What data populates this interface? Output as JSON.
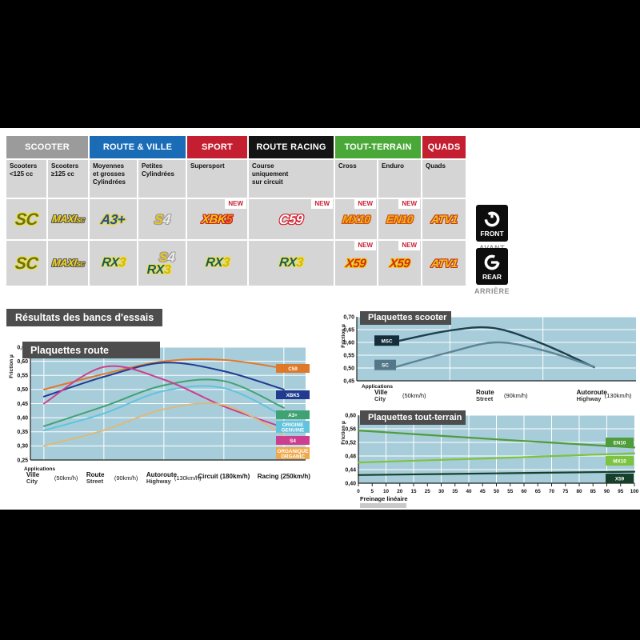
{
  "colors": {
    "page_bg": "#000000",
    "content_bg": "#ffffff",
    "cell_bg": "#d5d5d5",
    "title_bar_bg": "#4d4d4d",
    "plot_bg": "#a7cdda",
    "new_color": "#c81f33"
  },
  "table": {
    "new_label": "NEW",
    "categories": [
      {
        "label": "SCOOTER",
        "color": "#9b9b9b",
        "cols": [
          0,
          1
        ]
      },
      {
        "label": "ROUTE & VILLE",
        "color": "#1a6cb7",
        "cols": [
          2,
          3
        ]
      },
      {
        "label": "SPORT",
        "color": "#c41f30",
        "cols": [
          4
        ]
      },
      {
        "label": "ROUTE RACING",
        "color": "#141414",
        "cols": [
          5
        ]
      },
      {
        "label": "TOUT-TERRAIN",
        "color": "#4aa838",
        "cols": [
          6,
          7
        ]
      },
      {
        "label": "QUADS",
        "color": "#c41f30",
        "cols": [
          8
        ]
      }
    ],
    "subheaders": [
      [
        "Scooters",
        "<125 cc"
      ],
      [
        "Scooters",
        "≥125 cc"
      ],
      [
        "Moyennes",
        "et grosses",
        "Cylindrées"
      ],
      [
        "Petites",
        "Cylindrées"
      ],
      [
        "Supersport"
      ],
      [
        "Course",
        "uniquement",
        "sur circuit"
      ],
      [
        "Cross"
      ],
      [
        "Enduro"
      ],
      [
        "Quads"
      ]
    ],
    "front_row": {
      "side": "FRONT",
      "side_fr": "AVANT",
      "cells": [
        {
          "logos": [
            "SC"
          ]
        },
        {
          "logos": [
            "MAXISC"
          ]
        },
        {
          "logos": [
            "A3PLUS"
          ]
        },
        {
          "logos": [
            "S4"
          ]
        },
        {
          "logos": [
            "XBK5"
          ],
          "new": true
        },
        {
          "logos": [
            "C59"
          ],
          "new": true
        },
        {
          "logos": [
            "MX10"
          ],
          "new": true
        },
        {
          "logos": [
            "EN10"
          ],
          "new": true
        },
        {
          "logos": [
            "ATV1"
          ]
        }
      ]
    },
    "rear_row": {
      "side": "REAR",
      "side_fr": "ARRIÈRE",
      "cells": [
        {
          "logos": [
            "SC"
          ]
        },
        {
          "logos": [
            "MAXISC"
          ]
        },
        {
          "logos": [
            "RX3"
          ]
        },
        {
          "logos": [
            "S4",
            "RX3"
          ]
        },
        {
          "logos": [
            "RX3"
          ]
        },
        {
          "logos": [
            "RX3"
          ]
        },
        {
          "logos": [
            "X59"
          ],
          "new": true
        },
        {
          "logos": [
            "X59"
          ],
          "new": true
        },
        {
          "logos": [
            "ATV1"
          ]
        }
      ]
    },
    "logos": {
      "SC": {
        "size": 21,
        "outline": "#e9e23b",
        "segments": [
          {
            "text": "SC",
            "color": "#6f6f1a"
          }
        ]
      },
      "MAXISC": {
        "size": 13,
        "outline": "#5a5a5a",
        "segments": [
          {
            "text": "MAXI",
            "color": "#f2d41c"
          },
          {
            "text": "SC",
            "color": "#f2d41c",
            "small": true
          }
        ]
      },
      "A3PLUS": {
        "size": 17,
        "outline": "#e9d41c",
        "segments": [
          {
            "text": "A3+",
            "color": "#1d4fa8"
          }
        ]
      },
      "S4": {
        "size": 17,
        "outline": "#9b9b9b",
        "segments": [
          {
            "text": "S",
            "color": "#f0c613"
          },
          {
            "text": "4",
            "color": "#ececec"
          }
        ]
      },
      "XBK5": {
        "size": 15,
        "outline": "#c62020",
        "segments": [
          {
            "text": "XBK",
            "color": "#f0c613"
          },
          {
            "text": "5",
            "color": "#f07c13"
          }
        ]
      },
      "C59": {
        "size": 17,
        "outline": "#d41f2f",
        "segments": [
          {
            "text": "C59",
            "color": "#ffffff"
          }
        ]
      },
      "MX10": {
        "size": 14,
        "outline": "#d14a12",
        "segments": [
          {
            "text": "MX10",
            "color": "#f0b013"
          }
        ]
      },
      "EN10": {
        "size": 14,
        "outline": "#d14a12",
        "segments": [
          {
            "text": "EN10",
            "color": "#f0b013"
          }
        ]
      },
      "ATV1": {
        "size": 14,
        "outline": "#c63118",
        "segments": [
          {
            "text": "ATV1",
            "color": "#f0c613"
          }
        ]
      },
      "RX3": {
        "size": 16,
        "outline": "#e9e04a",
        "segments": [
          {
            "text": "RX",
            "color": "#175a62"
          },
          {
            "text": "3",
            "color": "#d8b400"
          }
        ]
      },
      "X59": {
        "size": 15,
        "outline": "#f0c613",
        "segments": [
          {
            "text": "X59",
            "color": "#d42a13"
          }
        ]
      }
    }
  },
  "results_title": "Résultats des bancs d'essais",
  "chart_data": [
    {
      "id": "route",
      "type": "line",
      "title": "Plaquettes route",
      "ylabel": "Friction µ",
      "ylim": [
        0.25,
        0.65
      ],
      "grid": true,
      "legend_position": "right-inside",
      "yticks": [
        "0,65",
        "0,60",
        "0,55",
        "0,50",
        "0,45",
        "0,40",
        "0,35",
        "0,30",
        "0,25"
      ],
      "applications_label": "Applications",
      "categories": [
        {
          "fr": "Ville",
          "en": "City",
          "speed": "(50km/h)"
        },
        {
          "fr": "Route",
          "en": "Street",
          "speed": "(90km/h)"
        },
        {
          "fr": "Autoroute",
          "en": "Highway",
          "speed": "(130km/h)"
        },
        {
          "fr": "Circuit (180km/h)"
        },
        {
          "fr": "Racing (250km/h)"
        }
      ],
      "series": [
        {
          "name": "C59",
          "color": "#e0782a",
          "label": [
            "C59"
          ],
          "label_bg": "#e0782a",
          "values": [
            0.5,
            0.555,
            0.6,
            0.605,
            0.575
          ]
        },
        {
          "name": "XBK5",
          "color": "#203a90",
          "label": [
            "XBK5"
          ],
          "label_bg": "#203a90",
          "values": [
            0.475,
            0.545,
            0.595,
            0.565,
            0.5
          ]
        },
        {
          "name": "A3+",
          "color": "#3fa273",
          "label": [
            "A3+"
          ],
          "label_bg": "#3fa273",
          "values": [
            0.37,
            0.44,
            0.515,
            0.53,
            0.435
          ]
        },
        {
          "name": "ORIGINE",
          "color": "#62c3dd",
          "label": [
            "ORIGINE",
            "GENUINE"
          ],
          "label_bg": "#62c3dd",
          "values": [
            0.355,
            0.415,
            0.495,
            0.505,
            0.405
          ]
        },
        {
          "name": "S4",
          "color": "#cc3f8e",
          "label": [
            "S4"
          ],
          "label_bg": "#cc3f8e",
          "values": [
            0.45,
            0.58,
            0.535,
            0.44,
            0.365
          ]
        },
        {
          "name": "ORGANIQUE",
          "color": "#dcb97e",
          "label": [
            "ORGANIQUE",
            "ORGANIC"
          ],
          "label_bg": "#efa94a",
          "values": [
            0.3,
            0.355,
            0.43,
            0.445,
            0.34
          ]
        }
      ]
    },
    {
      "id": "scooter",
      "type": "line",
      "title": "Plaquettes scooter",
      "ylabel": "Friction µ",
      "ylim": [
        0.45,
        0.7
      ],
      "grid": true,
      "legend_position": "left-inside",
      "yticks": [
        "0,70",
        "0,65",
        "0,60",
        "0,55",
        "0,50",
        "0,45"
      ],
      "applications_label": "Applications",
      "categories": [
        {
          "fr": "Ville",
          "en": "City",
          "speed": "(50km/h)"
        },
        {
          "fr": "Route",
          "en": "Street",
          "speed": "(90km/h)"
        },
        {
          "fr": "Autoroute",
          "en": "Highway",
          "speed": "(130km/h)"
        }
      ],
      "series": [
        {
          "name": "MSC",
          "color": "#1d3f4e",
          "label": [
            "MSC"
          ],
          "label_bg": "#142e3b",
          "label_v": 0.607,
          "points": [
            [
              0.126,
              0.6
            ],
            [
              0.33,
              0.646
            ],
            [
              0.49,
              0.656
            ],
            [
              0.66,
              0.597
            ],
            [
              0.85,
              0.503
            ]
          ]
        },
        {
          "name": "SC",
          "color": "#5d8496",
          "label": [
            "SC"
          ],
          "label_bg": "#54788a",
          "label_v": 0.512,
          "points": [
            [
              0.126,
              0.5
            ],
            [
              0.33,
              0.561
            ],
            [
              0.5,
              0.6
            ],
            [
              0.67,
              0.568
            ],
            [
              0.85,
              0.505
            ]
          ]
        }
      ]
    },
    {
      "id": "terrain",
      "type": "line",
      "title": "Plaquettes tout-terrain",
      "ylabel": "Friction µ",
      "xlabel": "Freinage linéaire",
      "ylim": [
        0.4,
        0.6
      ],
      "xlim": [
        0,
        100
      ],
      "grid": true,
      "legend_position": "right-inside",
      "yticks": [
        "0,60",
        "0,56",
        "0,52",
        "0,48",
        "0,44",
        "0,40"
      ],
      "xticks": [
        "0",
        "5",
        "10",
        "20",
        "15",
        "25",
        "30",
        "35",
        "40",
        "45",
        "50",
        "55",
        "60",
        "65",
        "70",
        "75",
        "80",
        "85",
        "90",
        "95",
        "100"
      ],
      "series": [
        {
          "name": "EN10",
          "color": "#4f9c3b",
          "label": [
            "EN10"
          ],
          "label_bg": "#4f9c3b",
          "label_v": 0.52,
          "points": [
            [
              0,
              0.555
            ],
            [
              50,
              0.529
            ],
            [
              100,
              0.505
            ]
          ]
        },
        {
          "name": "MX10",
          "color": "#7cc43f",
          "label": [
            "MX10"
          ],
          "label_bg": "#7cc43f",
          "label_v": 0.466,
          "points": [
            [
              0,
              0.461
            ],
            [
              50,
              0.474
            ],
            [
              100,
              0.488
            ]
          ]
        },
        {
          "name": "X59",
          "color": "#16402a",
          "label": [
            "X59"
          ],
          "label_bg": "#16402a",
          "label_v": 0.414,
          "points": [
            [
              0,
              0.424
            ],
            [
              50,
              0.429
            ],
            [
              100,
              0.434
            ]
          ]
        }
      ]
    }
  ]
}
